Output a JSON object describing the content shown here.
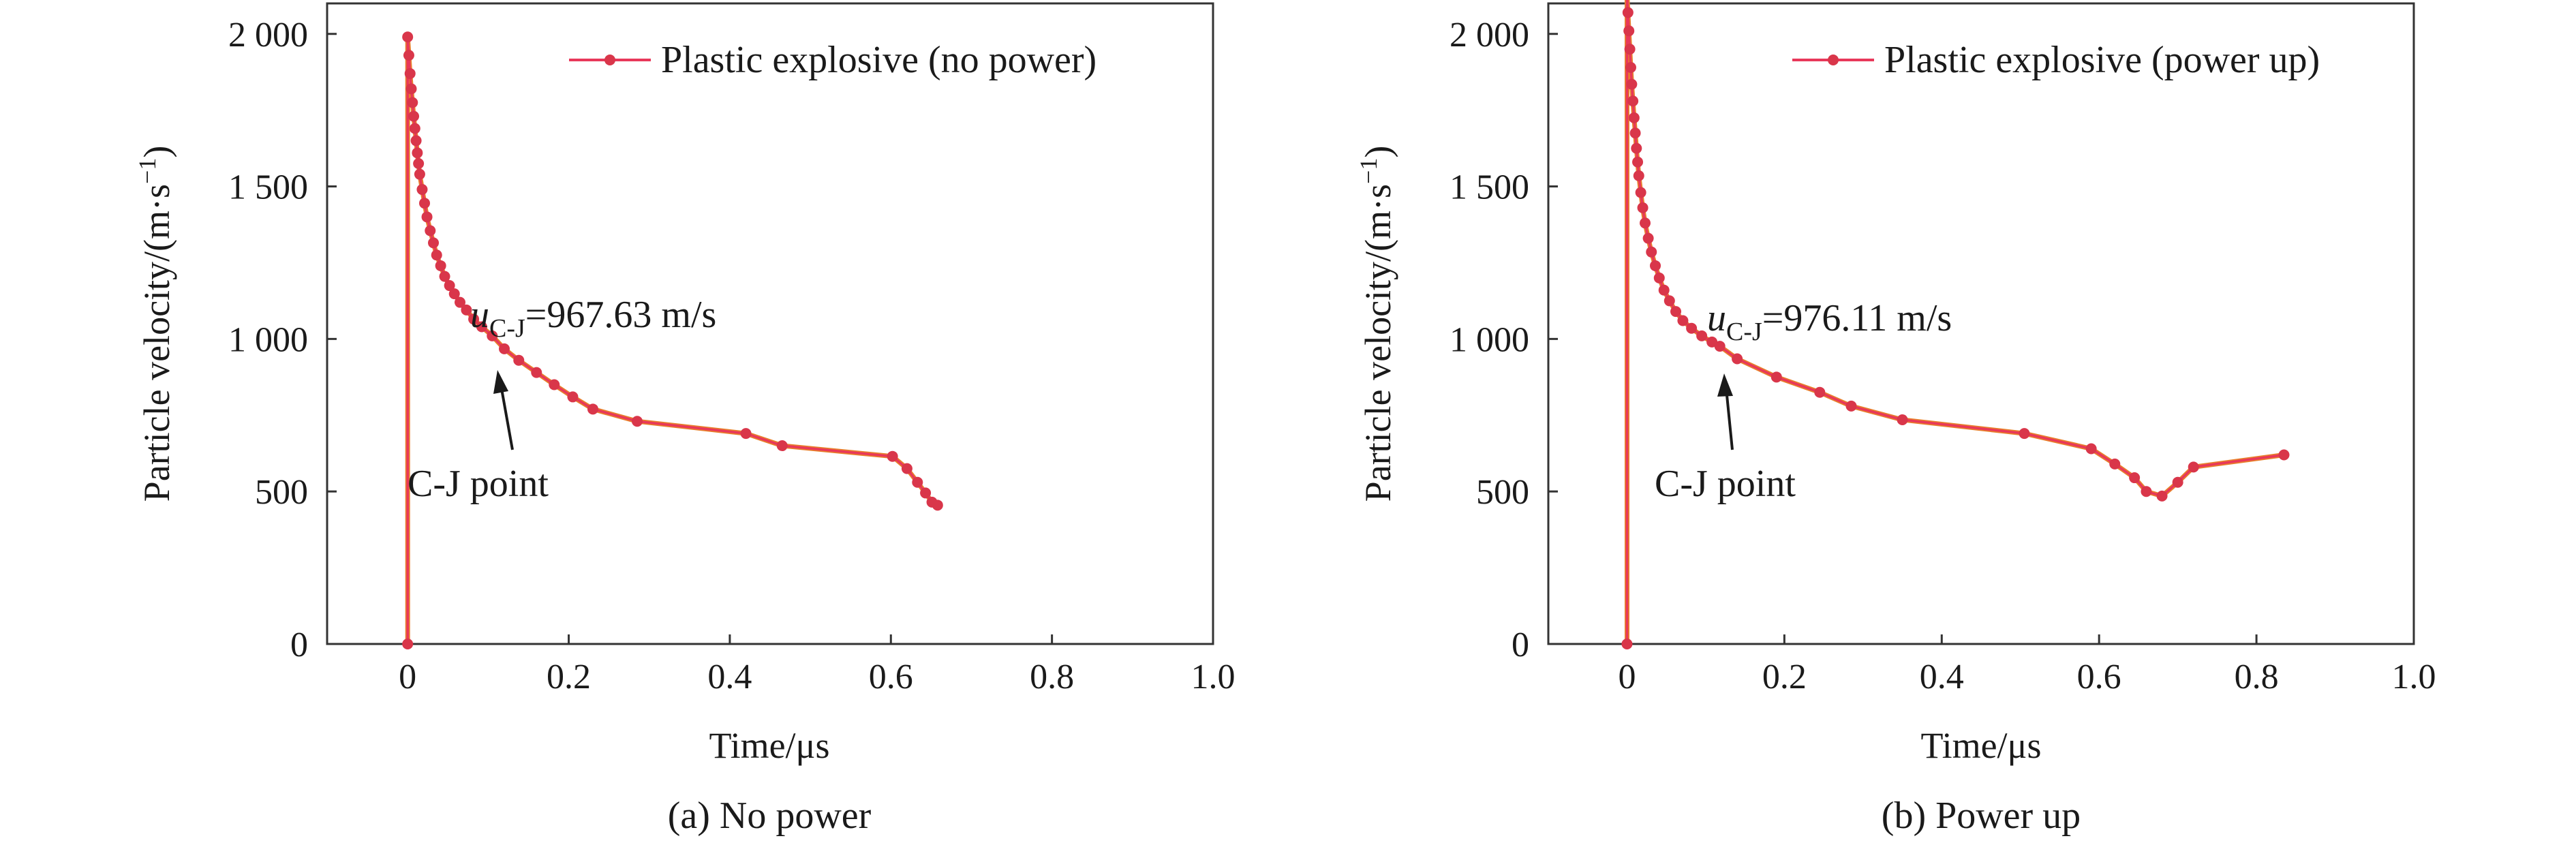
{
  "figure": {
    "series_color": "#e8385a",
    "marker_color": "#d9364a",
    "overlay_color": "#e87e2b"
  },
  "chart_data": [
    {
      "type": "line",
      "caption": "(a) No power",
      "xlabel": "Time/μs",
      "ylabel": "Particle velocity/(m·s",
      "ylabel_unit_exp": "−1",
      "ylabel_close": ")",
      "xlim": [
        -0.1,
        1.0
      ],
      "ylim": [
        0,
        2100
      ],
      "xticks": [
        0,
        0.2,
        0.4,
        0.6,
        0.8,
        1.0
      ],
      "xtick_labels": [
        "0",
        "0.2",
        "0.4",
        "0.6",
        "0.8",
        "1.0"
      ],
      "yticks": [
        0,
        500,
        1000,
        1500,
        2000
      ],
      "ytick_labels": [
        "0",
        "500",
        "1 000",
        "1 500",
        "2 000"
      ],
      "legend": "Plastic explosive (no power)",
      "legend_position": "top-right",
      "annotation": {
        "var": "u",
        "subscript": "C-J",
        "value_text": "=967.63 m/s",
        "point_label": "C-J point",
        "point": [
          0.12,
          967.63
        ]
      },
      "series": [
        {
          "name": "Plastic explosive (no power)",
          "x": [
            0.0,
            0.0,
            0.0015,
            0.003,
            0.0045,
            0.006,
            0.0075,
            0.009,
            0.0105,
            0.012,
            0.0135,
            0.015,
            0.018,
            0.021,
            0.024,
            0.028,
            0.032,
            0.036,
            0.041,
            0.046,
            0.052,
            0.058,
            0.065,
            0.073,
            0.082,
            0.092,
            0.105,
            0.12,
            0.138,
            0.16,
            0.182,
            0.205,
            0.23,
            0.285,
            0.42,
            0.465,
            0.602,
            0.62,
            0.633,
            0.643,
            0.651,
            0.658
          ],
          "y": [
            0,
            1990,
            1930,
            1870,
            1820,
            1775,
            1730,
            1690,
            1650,
            1610,
            1575,
            1540,
            1490,
            1445,
            1400,
            1355,
            1315,
            1275,
            1240,
            1205,
            1175,
            1148,
            1120,
            1095,
            1065,
            1040,
            1010,
            967.63,
            930,
            890,
            850,
            810,
            770,
            730,
            690,
            650,
            615,
            575,
            530,
            495,
            465,
            455
          ]
        }
      ]
    },
    {
      "type": "line",
      "caption": "(b) Power up",
      "xlabel": "Time/μs",
      "ylabel": "Particle velocity/(m·s",
      "ylabel_unit_exp": "−1",
      "ylabel_close": ")",
      "xlim": [
        -0.1,
        1.0
      ],
      "ylim": [
        0,
        2100
      ],
      "xticks": [
        0,
        0.2,
        0.4,
        0.6,
        0.8,
        1.0
      ],
      "xtick_labels": [
        "0",
        "0.2",
        "0.4",
        "0.6",
        "0.8",
        "1.0"
      ],
      "yticks": [
        0,
        500,
        1000,
        1500,
        2000
      ],
      "ytick_labels": [
        "0",
        "500",
        "1 000",
        "1 500",
        "2 000"
      ],
      "legend": "Plastic explosive (power up)",
      "legend_position": "top-right",
      "annotation": {
        "var": "u",
        "subscript": "C-J",
        "value_text": "=976.11 m/s",
        "point_label": "C-J point",
        "point": [
          0.118,
          976.11
        ]
      },
      "series": [
        {
          "name": "Plastic explosive (power up)",
          "x": [
            0.0,
            0.0,
            0.0012,
            0.0024,
            0.0036,
            0.0048,
            0.006,
            0.0075,
            0.009,
            0.0105,
            0.012,
            0.0135,
            0.015,
            0.0175,
            0.02,
            0.023,
            0.027,
            0.031,
            0.036,
            0.041,
            0.047,
            0.054,
            0.062,
            0.071,
            0.082,
            0.095,
            0.108,
            0.118,
            0.14,
            0.19,
            0.245,
            0.285,
            0.35,
            0.505,
            0.59,
            0.62,
            0.645,
            0.66,
            0.68,
            0.7,
            0.72,
            0.835
          ],
          "y": [
            0,
            2130,
            2070,
            2010,
            1950,
            1890,
            1835,
            1780,
            1725,
            1675,
            1625,
            1580,
            1535,
            1480,
            1430,
            1380,
            1330,
            1285,
            1240,
            1200,
            1160,
            1125,
            1090,
            1060,
            1035,
            1010,
            990,
            976.11,
            935,
            875,
            825,
            780,
            735,
            690,
            640,
            590,
            545,
            500,
            485,
            530,
            580,
            620
          ]
        }
      ]
    }
  ]
}
